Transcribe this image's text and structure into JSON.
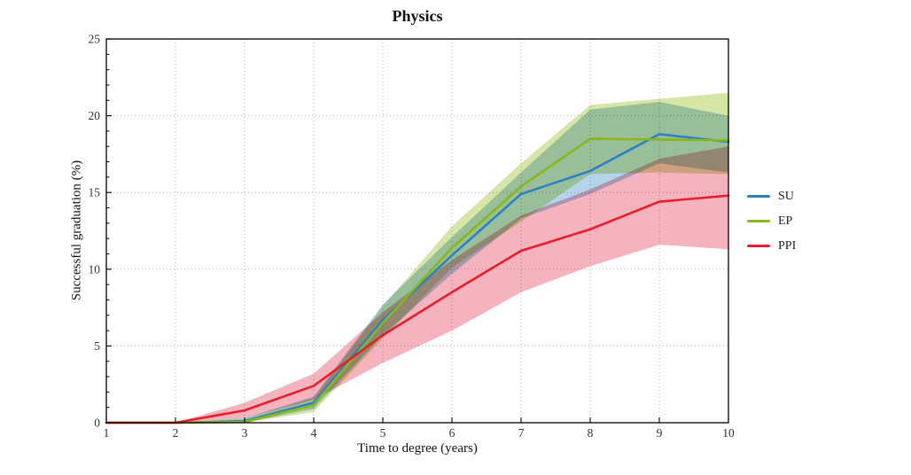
{
  "chart_data": {
    "type": "line",
    "title": "Physics",
    "xlabel": "Time to degree (years)",
    "ylabel": "Successful graduation (%)",
    "xlim": [
      1,
      10
    ],
    "ylim": [
      0,
      25
    ],
    "xticks": [
      1,
      2,
      3,
      4,
      5,
      6,
      7,
      8,
      9,
      10
    ],
    "yticks": [
      0,
      5,
      10,
      15,
      20,
      25
    ],
    "y_minor_tick_step": 1,
    "grid": "dotted gray gridlines at interior x and y major ticks",
    "legend_position": "right of plot, no frame",
    "x": [
      1,
      2,
      3,
      4,
      5,
      6,
      7,
      8,
      9,
      10
    ],
    "series": [
      {
        "name": "SU",
        "color": "#2e7fc3",
        "band_color": "#b5d4ec",
        "values": [
          0,
          0,
          0.1,
          1.3,
          6.7,
          10.9,
          14.9,
          16.4,
          18.8,
          18.3
        ],
        "band_low": [
          0,
          0,
          0.0,
          0.9,
          5.7,
          9.7,
          13.3,
          14.9,
          16.9,
          16.3
        ],
        "band_high": [
          0,
          0,
          0.3,
          1.7,
          7.7,
          12.1,
          16.3,
          20.4,
          20.9,
          20.0
        ]
      },
      {
        "name": "EP",
        "color": "#8ab616",
        "band_color": "#d6e6a6",
        "values": [
          0,
          0,
          0.05,
          1.15,
          6.5,
          11.4,
          15.4,
          18.5,
          18.45,
          18.4
        ],
        "band_low": [
          0,
          0,
          0.0,
          0.7,
          5.5,
          10.1,
          13.1,
          16.2,
          16.3,
          16.2
        ],
        "band_high": [
          0,
          0,
          0.25,
          1.6,
          7.6,
          12.8,
          16.9,
          20.7,
          21.1,
          21.5
        ]
      },
      {
        "name": "PPI",
        "color": "#e61e2e",
        "band_color": "#f5b3bd",
        "values": [
          0,
          0,
          0.8,
          2.4,
          5.7,
          8.5,
          11.2,
          12.6,
          14.4,
          14.8
        ],
        "band_low": [
          0,
          0,
          0.3,
          1.5,
          3.9,
          6.0,
          8.5,
          10.2,
          11.6,
          11.3
        ],
        "band_high": [
          0,
          0,
          1.3,
          3.2,
          7.2,
          10.6,
          13.5,
          15.2,
          17.2,
          18.0
        ]
      }
    ],
    "style": {
      "background": "#ffffff",
      "spine_color": "#000000",
      "grid_color": "#b3b3b3",
      "tick_label_color": "#333333"
    }
  }
}
